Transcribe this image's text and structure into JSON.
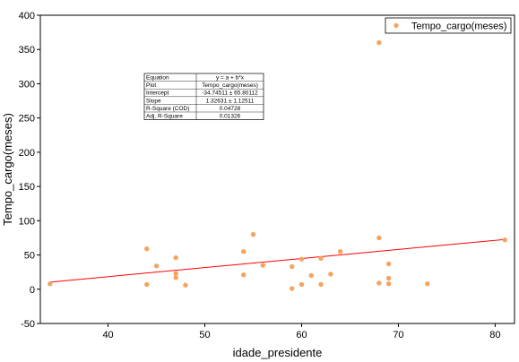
{
  "chart_data": {
    "type": "scatter",
    "xlabel": "idade_presidente",
    "ylabel": "Tempo_cargo(meses)",
    "xlim": [
      33,
      82
    ],
    "ylim": [
      -50,
      400
    ],
    "x_ticks": [
      40,
      50,
      60,
      70,
      80
    ],
    "y_ticks": [
      -50,
      0,
      50,
      100,
      150,
      200,
      250,
      300,
      350,
      400
    ],
    "grid": false,
    "legend_position": "top-right",
    "colors": {
      "points": "#f4a460",
      "fit_line": "#ff0000",
      "axis": "#000000"
    },
    "series": [
      {
        "name": "Tempo_cargo(meses)",
        "points": [
          {
            "x": 34,
            "y": 8
          },
          {
            "x": 44,
            "y": 59
          },
          {
            "x": 44,
            "y": 7
          },
          {
            "x": 45,
            "y": 34
          },
          {
            "x": 47,
            "y": 46
          },
          {
            "x": 47,
            "y": 23
          },
          {
            "x": 47,
            "y": 17
          },
          {
            "x": 48,
            "y": 6
          },
          {
            "x": 54,
            "y": 55
          },
          {
            "x": 54,
            "y": 21
          },
          {
            "x": 55,
            "y": 80
          },
          {
            "x": 56,
            "y": 35
          },
          {
            "x": 59,
            "y": 33
          },
          {
            "x": 59,
            "y": 1
          },
          {
            "x": 60,
            "y": 44
          },
          {
            "x": 60,
            "y": 7
          },
          {
            "x": 61,
            "y": 20
          },
          {
            "x": 62,
            "y": 45
          },
          {
            "x": 62,
            "y": 7
          },
          {
            "x": 63,
            "y": 22
          },
          {
            "x": 64,
            "y": 55
          },
          {
            "x": 68,
            "y": 360
          },
          {
            "x": 68,
            "y": 75
          },
          {
            "x": 68,
            "y": 9
          },
          {
            "x": 69,
            "y": 37
          },
          {
            "x": 69,
            "y": 16
          },
          {
            "x": 69,
            "y": 8
          },
          {
            "x": 73,
            "y": 8
          },
          {
            "x": 81,
            "y": 72
          }
        ]
      }
    ],
    "fit": {
      "intercept": -34.74511,
      "slope": 1.32631,
      "x_range": [
        34,
        81
      ]
    },
    "stats_table": [
      [
        "Equation",
        "y = a + b*x"
      ],
      [
        "Plot",
        "Tempo_cargo(meses)"
      ],
      [
        "Intercept",
        "-34.74511 ± 65.80112"
      ],
      [
        "Slope",
        "1.32631 ± 1.12511"
      ],
      [
        "R-Square (COD)",
        "0.04728"
      ],
      [
        "Adj. R-Square",
        "0.01326"
      ]
    ]
  }
}
